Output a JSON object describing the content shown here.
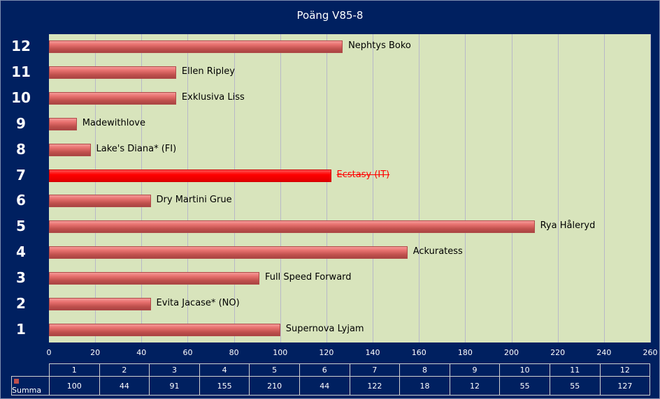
{
  "chart_data": {
    "type": "bar",
    "title": "Poäng  V85-8",
    "categories": [
      "1",
      "2",
      "3",
      "4",
      "5",
      "6",
      "7",
      "8",
      "9",
      "10",
      "11",
      "12"
    ],
    "series": [
      {
        "name": "Summa",
        "values": [
          100,
          44,
          91,
          155,
          210,
          44,
          122,
          18,
          12,
          55,
          55,
          127
        ]
      }
    ],
    "bar_labels": [
      "Supernova  Lyjam",
      "Evita Jacase* (NO)",
      "Full Speed Forward",
      "Ackuratess",
      "Rya Håleryd",
      "Dry Martini  Grue",
      "Ecstasy (IT)",
      "Lake's Diana* (FI)",
      "Madewithlove",
      "Exklusiva Liss",
      "Ellen Ripley",
      "Nephtys Boko"
    ],
    "highlighted_category": "7",
    "xlim": [
      0,
      260
    ],
    "xticks": [
      0,
      20,
      40,
      60,
      80,
      100,
      120,
      140,
      160,
      180,
      200,
      220,
      240,
      260
    ],
    "orientation": "horizontal",
    "grid": true,
    "legend": "data-table-bottom"
  },
  "colors": {
    "background": "#002060",
    "plot": "#d8e4bc",
    "bar": "#c0504d",
    "highlight": "#ff0000"
  }
}
